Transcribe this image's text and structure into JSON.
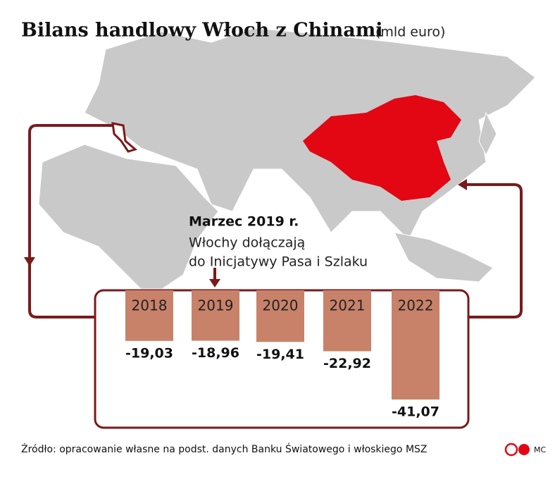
{
  "chart_data": {
    "type": "bar",
    "title": "Bilans handlowy Włoch z Chinami",
    "subtitle": "(mld euro)",
    "annotation": {
      "title": "Marzec 2019 r.",
      "lines": [
        "Włochy dołączają",
        "do Inicjatywy Pasa i Szlaku"
      ]
    },
    "categories": [
      "2018",
      "2019",
      "2020",
      "2021",
      "2022"
    ],
    "values": [
      -19.03,
      -18.96,
      -19.41,
      -22.92,
      -41.07
    ],
    "value_labels": [
      "-19,03",
      "-18,96",
      "-19,41",
      "-22,92",
      "-41,07"
    ],
    "color": "#c8826a",
    "source": "Źródło: opracowanie własne na podst. danych Banku Światowego i włoskiego MSZ",
    "credit": "MC"
  }
}
